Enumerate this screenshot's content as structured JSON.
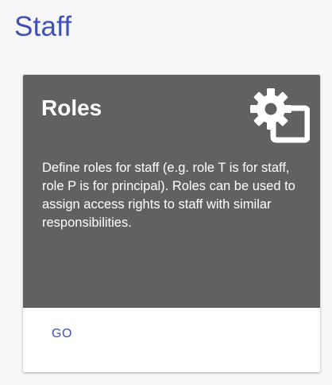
{
  "page": {
    "title": "Staff"
  },
  "card": {
    "title": "Roles",
    "icon": "gear-box-icon",
    "description": "Define roles for staff (e.g. role T is for staff, role P is for principal). Roles can be used to assign access rights to staff with similar responsibilities.",
    "action_label": "GO"
  },
  "colors": {
    "accent": "#3f51b5",
    "card_header": "#616161",
    "background": "#f7f7f9"
  }
}
